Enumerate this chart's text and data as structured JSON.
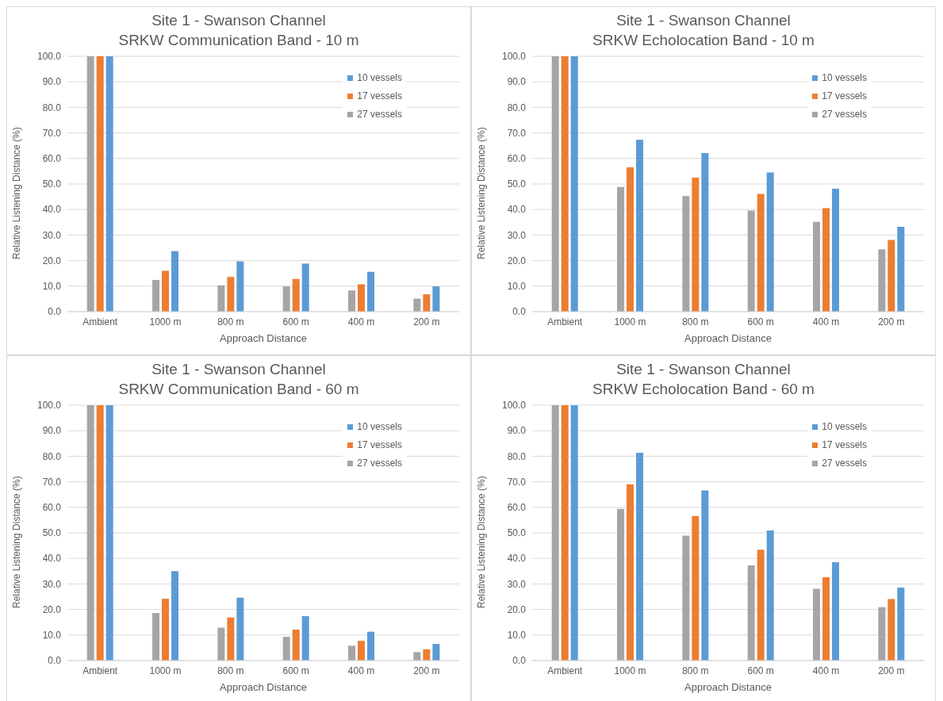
{
  "chart_data": [
    {
      "type": "bar",
      "title": "Site 1 - Swanson Channel",
      "subtitle": "SRKW Communication Band - 10 m",
      "xlabel": "Approach Distance",
      "ylabel": "Relative Listening Distance (%)",
      "categories": [
        "Ambient",
        "1000 m",
        "800 m",
        "600 m",
        "400 m",
        "200 m"
      ],
      "ylim": [
        0,
        100
      ],
      "yticks": [
        {
          "value": 0,
          "label": "0.0"
        },
        {
          "value": 10,
          "label": "10.0"
        },
        {
          "value": 20,
          "label": "20.0"
        },
        {
          "value": 30,
          "label": "30.0"
        },
        {
          "value": 40,
          "label": "40.0"
        },
        {
          "value": 50,
          "label": "50.0"
        },
        {
          "value": 60,
          "label": "60.0"
        },
        {
          "value": 70,
          "label": "70.0"
        },
        {
          "value": 80,
          "label": "80.0"
        },
        {
          "value": 90,
          "label": "90.0"
        },
        {
          "value": 100,
          "label": "100.0"
        }
      ],
      "grid": "y",
      "legend": "top right",
      "series": [
        {
          "name": "27 vessels",
          "color": "#a5a5a5",
          "values": [
            100,
            12.4,
            10.3,
            9.9,
            8.3,
            5.1
          ]
        },
        {
          "name": "17 vessels",
          "color": "#ed7d31",
          "values": [
            100,
            16.0,
            13.6,
            12.8,
            10.7,
            6.8
          ]
        },
        {
          "name": "10 vessels",
          "color": "#5b9bd5",
          "values": [
            100,
            23.7,
            19.7,
            18.8,
            15.6,
            9.9
          ]
        }
      ]
    },
    {
      "type": "bar",
      "title": "Site 1 - Swanson Channel",
      "subtitle": "SRKW Echolocation Band - 10 m",
      "xlabel": "Approach Distance",
      "ylabel": "Relative Listening Distance (%)",
      "categories": [
        "Ambient",
        "1000 m",
        "800 m",
        "600 m",
        "400 m",
        "200 m"
      ],
      "ylim": [
        0,
        100
      ],
      "yticks": [
        {
          "value": 0,
          "label": "0.0"
        },
        {
          "value": 10,
          "label": "10.0"
        },
        {
          "value": 20,
          "label": "20.0"
        },
        {
          "value": 30,
          "label": "30.0"
        },
        {
          "value": 40,
          "label": "40.0"
        },
        {
          "value": 50,
          "label": "50.0"
        },
        {
          "value": 60,
          "label": "60.0"
        },
        {
          "value": 70,
          "label": "70.0"
        },
        {
          "value": 80,
          "label": "80.0"
        },
        {
          "value": 90,
          "label": "90.0"
        },
        {
          "value": 100,
          "label": "100.0"
        }
      ],
      "grid": "y",
      "legend": "top right",
      "series": [
        {
          "name": "27 vessels",
          "color": "#a5a5a5",
          "values": [
            100,
            48.8,
            45.3,
            39.6,
            35.2,
            24.4
          ]
        },
        {
          "name": "17 vessels",
          "color": "#ed7d31",
          "values": [
            100,
            56.5,
            52.5,
            46.1,
            40.5,
            28.1
          ]
        },
        {
          "name": "10 vessels",
          "color": "#5b9bd5",
          "values": [
            100,
            67.3,
            62.1,
            54.5,
            48.1,
            33.2
          ]
        }
      ]
    },
    {
      "type": "bar",
      "title": "Site 1 - Swanson Channel",
      "subtitle": "SRKW Communication Band - 60 m",
      "xlabel": "Approach Distance",
      "ylabel": "Relative Listening Distance (%)",
      "categories": [
        "Ambient",
        "1000 m",
        "800 m",
        "600 m",
        "400 m",
        "200 m"
      ],
      "ylim": [
        0,
        100
      ],
      "yticks": [
        {
          "value": 0,
          "label": "0.0"
        },
        {
          "value": 10,
          "label": "10.0"
        },
        {
          "value": 20,
          "label": "20.0"
        },
        {
          "value": 30,
          "label": "30.0"
        },
        {
          "value": 40,
          "label": "40.0"
        },
        {
          "value": 50,
          "label": "50.0"
        },
        {
          "value": 60,
          "label": "60.0"
        },
        {
          "value": 70,
          "label": "70.0"
        },
        {
          "value": 80,
          "label": "80.0"
        },
        {
          "value": 90,
          "label": "90.0"
        },
        {
          "value": 100,
          "label": "100.0"
        }
      ],
      "grid": "y",
      "legend": "top right",
      "series": [
        {
          "name": "27 vessels",
          "color": "#a5a5a5",
          "values": [
            100,
            18.6,
            12.9,
            9.3,
            5.8,
            3.3
          ]
        },
        {
          "name": "17 vessels",
          "color": "#ed7d31",
          "values": [
            100,
            24.2,
            16.9,
            12.1,
            7.7,
            4.4
          ]
        },
        {
          "name": "10 vessels",
          "color": "#5b9bd5",
          "values": [
            100,
            35.0,
            24.6,
            17.4,
            11.3,
            6.5
          ]
        }
      ]
    },
    {
      "type": "bar",
      "title": "Site 1 - Swanson Channel",
      "subtitle": "SRKW Echolocation Band - 60 m",
      "xlabel": "Approach Distance",
      "ylabel": "Relative Listening Distance (%)",
      "categories": [
        "Ambient",
        "1000 m",
        "800 m",
        "600 m",
        "400 m",
        "200 m"
      ],
      "ylim": [
        0,
        100
      ],
      "yticks": [
        {
          "value": 0,
          "label": "0.0"
        },
        {
          "value": 10,
          "label": "10.0"
        },
        {
          "value": 20,
          "label": "20.0"
        },
        {
          "value": 30,
          "label": "30.0"
        },
        {
          "value": 40,
          "label": "40.0"
        },
        {
          "value": 50,
          "label": "50.0"
        },
        {
          "value": 60,
          "label": "60.0"
        },
        {
          "value": 70,
          "label": "70.0"
        },
        {
          "value": 80,
          "label": "80.0"
        },
        {
          "value": 90,
          "label": "90.0"
        },
        {
          "value": 100,
          "label": "100.0"
        }
      ],
      "grid": "y",
      "legend": "top right",
      "series": [
        {
          "name": "27 vessels",
          "color": "#a5a5a5",
          "values": [
            100,
            59.4,
            48.9,
            37.3,
            28.1,
            20.9
          ]
        },
        {
          "name": "17 vessels",
          "color": "#ed7d31",
          "values": [
            100,
            69.0,
            56.6,
            43.4,
            32.6,
            24.1
          ]
        },
        {
          "name": "10 vessels",
          "color": "#5b9bd5",
          "values": [
            100,
            81.4,
            66.6,
            50.9,
            38.5,
            28.6
          ]
        }
      ]
    }
  ]
}
